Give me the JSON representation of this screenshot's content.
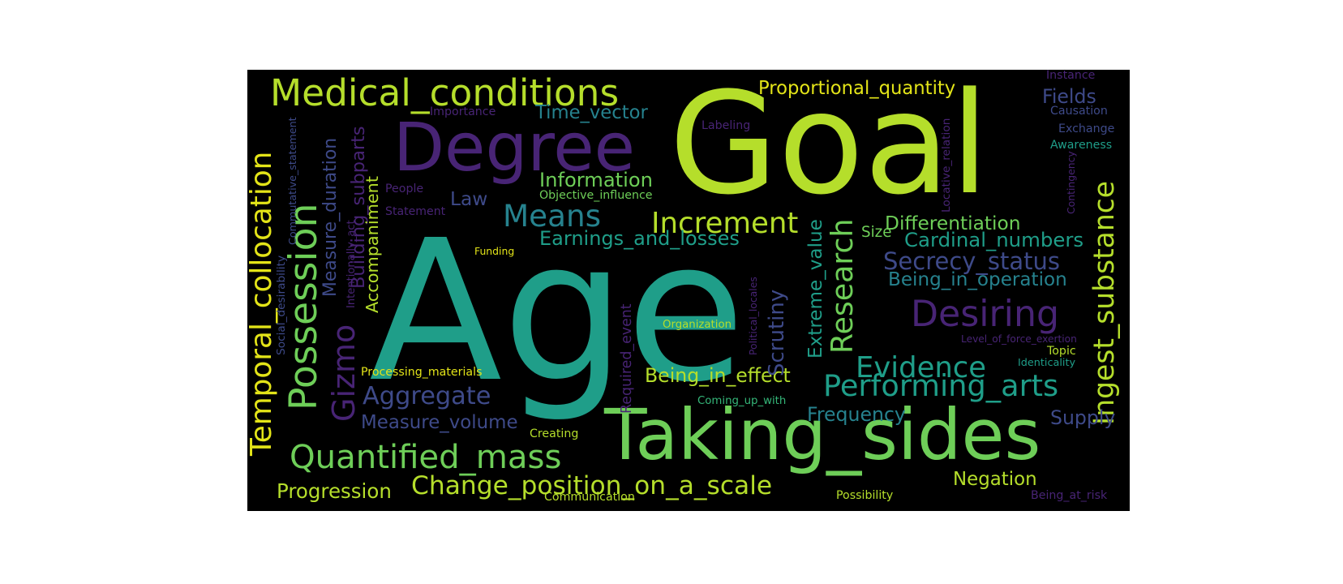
{
  "words": [
    "Goal",
    "Age",
    "Taking_sides",
    "Degree",
    "Medical_conditions",
    "Temporal_collocation",
    "Possession",
    "Desiring",
    "Quantified_mass",
    "Research",
    "Performing_arts",
    "Evidence",
    "Increment",
    "Change_position_on_a_scale",
    "Ingest_substance",
    "Means",
    "Secrecy_status",
    "Aggregate",
    "Gizmo",
    "Proportional_quantity",
    "Being_in_effect",
    "Progression",
    "Information",
    "Earnings_and_losses",
    "Being_in_operation",
    "Differentiation",
    "Cardinal_numbers",
    "Building_subparts",
    "Measure_volume",
    "Time_vector",
    "Measure_duration",
    "Accompaniment",
    "Frequency",
    "Negation",
    "Fields",
    "Supply",
    "Law",
    "Size",
    "Extreme_value",
    "Scrutiny",
    "Required_event",
    "Importance",
    "Labeling",
    "Causation",
    "Exchange",
    "Awareness",
    "Contingency",
    "Locative_relation",
    "Instance",
    "People",
    "Objective_influence",
    "Statement",
    "Intentionally_act",
    "Commutative_statement",
    "Social_desirability",
    "Funding",
    "Political_locales",
    "Organization",
    "Level_of_force_exertion",
    "Topic",
    "Identicality",
    "Processing_materials",
    "Coming_up_with",
    "Creating",
    "Communication",
    "Possibility",
    "Being_at_risk"
  ],
  "palette": {
    "purple": "#482475",
    "blue": "#3e4a89",
    "teal": "#26828e",
    "sea": "#1f9e89",
    "green": "#35b779",
    "lime": "#6ece58",
    "yellowgreen": "#b5de2b",
    "yellow": "#e3e418"
  }
}
